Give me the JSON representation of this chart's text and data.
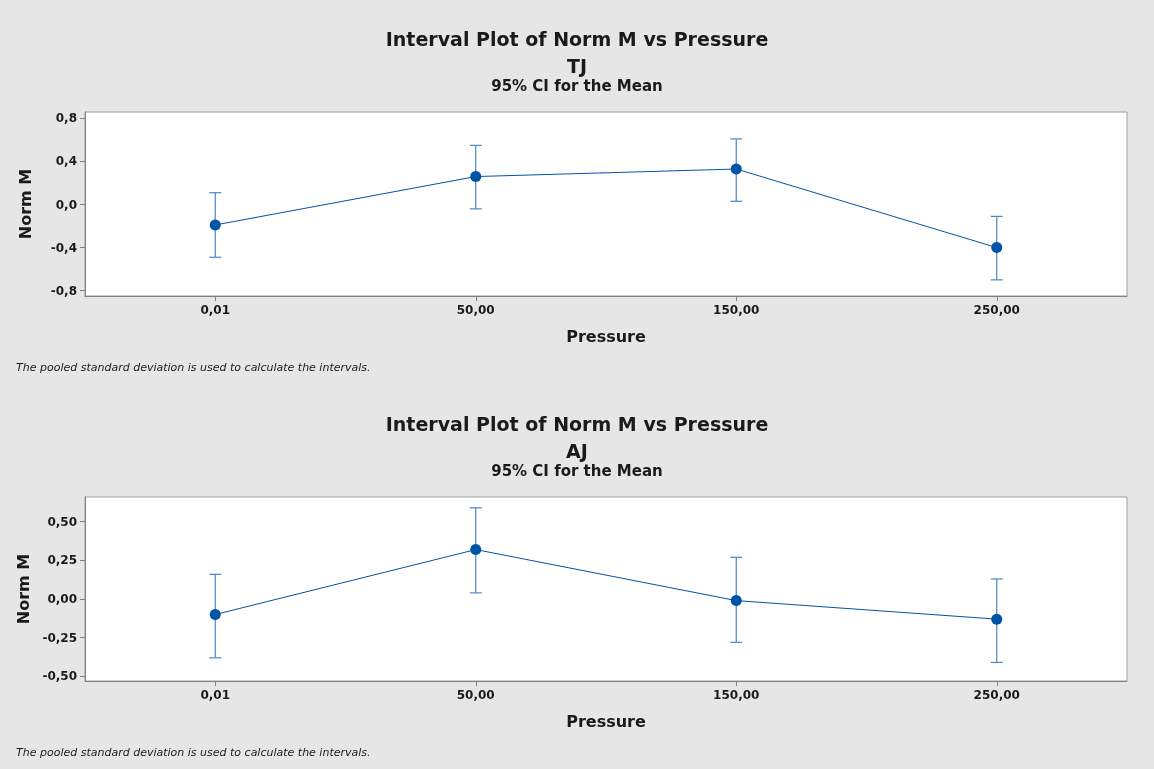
{
  "chart_data": [
    {
      "type": "line",
      "title": "Interval Plot of Norm M vs Pressure\nTJ",
      "subtitle": "95% CI for the Mean",
      "xlabel": "Pressure",
      "ylabel": "Norm M",
      "annotations": [
        "The pooled standard deviation is used to calculate the intervals."
      ],
      "categories": [
        "0,01",
        "50,00",
        "150,00",
        "250,00"
      ],
      "series": [
        {
          "color": "#0054a6",
          "values": [
            -0.19,
            0.26,
            0.33,
            -0.4
          ],
          "errors": [
            [
              -0.49,
              0.11
            ],
            [
              -0.04,
              0.55
            ],
            [
              0.03,
              0.61
            ],
            [
              -0.7,
              -0.11
            ]
          ]
        }
      ],
      "ylim": [
        -0.85,
        0.86
      ],
      "yticks": [
        {
          "value": -0.8,
          "label": "-0,8"
        },
        {
          "value": -0.4,
          "label": "-0,4"
        },
        {
          "value": 0,
          "label": "0,0"
        },
        {
          "value": 0.4,
          "label": "0,4"
        },
        {
          "value": 0.8,
          "label": "0,8"
        }
      ],
      "marker": "circle",
      "line_style": "solid"
    },
    {
      "type": "line",
      "title": "Interval Plot of Norm M vs Pressure\nAJ",
      "subtitle": "95% CI for the Mean",
      "xlabel": "Pressure",
      "ylabel": "Norm M",
      "annotations": [
        "The pooled standard deviation is used to calculate the intervals."
      ],
      "categories": [
        "0,01",
        "50,00",
        "150,00",
        "250,00"
      ],
      "series": [
        {
          "color": "#0054a6",
          "values": [
            -0.1,
            0.32,
            -0.01,
            -0.13
          ],
          "errors": [
            [
              -0.38,
              0.16
            ],
            [
              0.04,
              0.59
            ],
            [
              -0.28,
              0.27
            ],
            [
              -0.41,
              0.13
            ]
          ]
        }
      ],
      "ylim": [
        -0.53,
        0.66
      ],
      "yticks": [
        {
          "value": -0.5,
          "label": "-0,50"
        },
        {
          "value": -0.25,
          "label": "-0,25"
        },
        {
          "value": 0,
          "label": "0,00"
        },
        {
          "value": 0.25,
          "label": "0,25"
        },
        {
          "value": 0.5,
          "label": "0,50"
        }
      ],
      "marker": "circle",
      "line_style": "solid"
    }
  ]
}
